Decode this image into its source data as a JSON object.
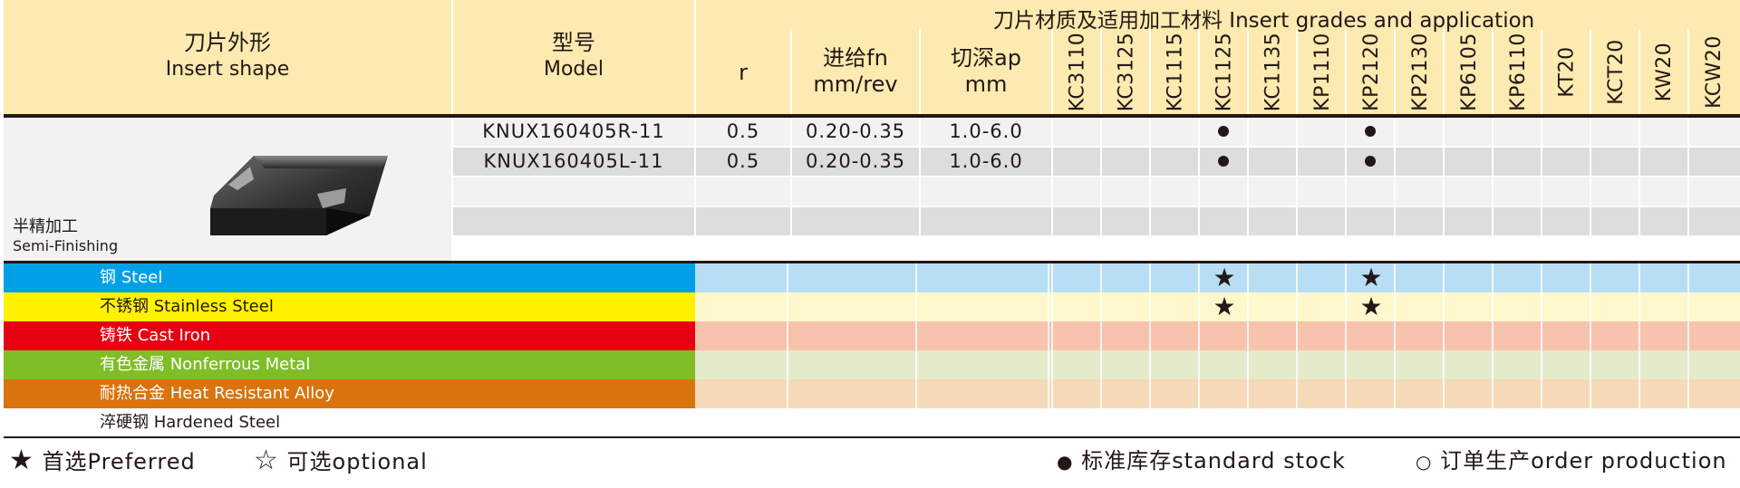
{
  "header": {
    "shape_cn": "刀片外形",
    "shape_en": "Insert shape",
    "model_cn": "型号",
    "model_en": "Model",
    "r": "r",
    "feed_cn": "进给fn",
    "feed_unit": "mm/rev",
    "depth_cn": "切深ap",
    "depth_unit": "mm",
    "grades_title": "刀片材质及适用加工材料 Insert grades and application",
    "grades": [
      "KC3110",
      "KC3125",
      "KC1115",
      "KC1125",
      "KC1135",
      "KP1110",
      "KP2120",
      "KP2130",
      "KP6105",
      "KP6110",
      "KT20",
      "KCT20",
      "KW20",
      "KCW20"
    ]
  },
  "insert": {
    "type_cn": "半精加工",
    "type_en": "Semi-Finishing",
    "image_icon": "knux-insert-icon"
  },
  "rows": [
    {
      "model": "KNUX160405R-11",
      "r": "0.5",
      "feed": "0.20-0.35",
      "depth": "1.0-6.0",
      "stock": [
        "KC1125",
        "KP2120"
      ]
    },
    {
      "model": "KNUX160405L-11",
      "r": "0.5",
      "feed": "0.20-0.35",
      "depth": "1.0-6.0",
      "stock": [
        "KC1125",
        "KP2120"
      ]
    },
    {
      "model": "",
      "r": "",
      "feed": "",
      "depth": "",
      "stock": []
    },
    {
      "model": "",
      "r": "",
      "feed": "",
      "depth": "",
      "stock": []
    }
  ],
  "materials": [
    {
      "label": "钢 Steel",
      "left_color": "#00a0e9",
      "right_color": "#b8def5",
      "text_color": "#ffffff",
      "preferred": [
        "KC1125",
        "KP2120"
      ]
    },
    {
      "label": "不锈钢 Stainless Steel",
      "left_color": "#fff100",
      "right_color": "#fff8cc",
      "text_color": "#231815",
      "preferred": [
        "KC1125",
        "KP2120"
      ]
    },
    {
      "label": "铸铁 Cast Iron",
      "left_color": "#e60012",
      "right_color": "#f7c3ad",
      "text_color": "#ffffff",
      "preferred": []
    },
    {
      "label": "有色金属 Nonferrous Metal",
      "left_color": "#7fbe26",
      "right_color": "#e2eccb",
      "text_color": "#ffffff",
      "preferred": []
    },
    {
      "label": "耐热合金 Heat Resistant Alloy",
      "left_color": "#d9730d",
      "right_color": "#f6d9b8",
      "text_color": "#ffffff",
      "preferred": []
    },
    {
      "label": "淬硬钢 Hardened Steel",
      "left_color": "#ffffff",
      "right_color": "#ffffff",
      "text_color": "#231815",
      "preferred": []
    }
  ],
  "legend": {
    "preferred_icon": "★",
    "preferred": "首选Preferred",
    "optional_icon": "☆",
    "optional": "可选optional",
    "stock_icon": "●",
    "stock": "标准库存standard stock",
    "order_icon": "○",
    "order": "订单生产order production"
  },
  "colors": {
    "header_bg": "#fdeab0",
    "row_light": "#f2f2f2",
    "row_dark": "#dcdddd",
    "text": "#231815"
  }
}
